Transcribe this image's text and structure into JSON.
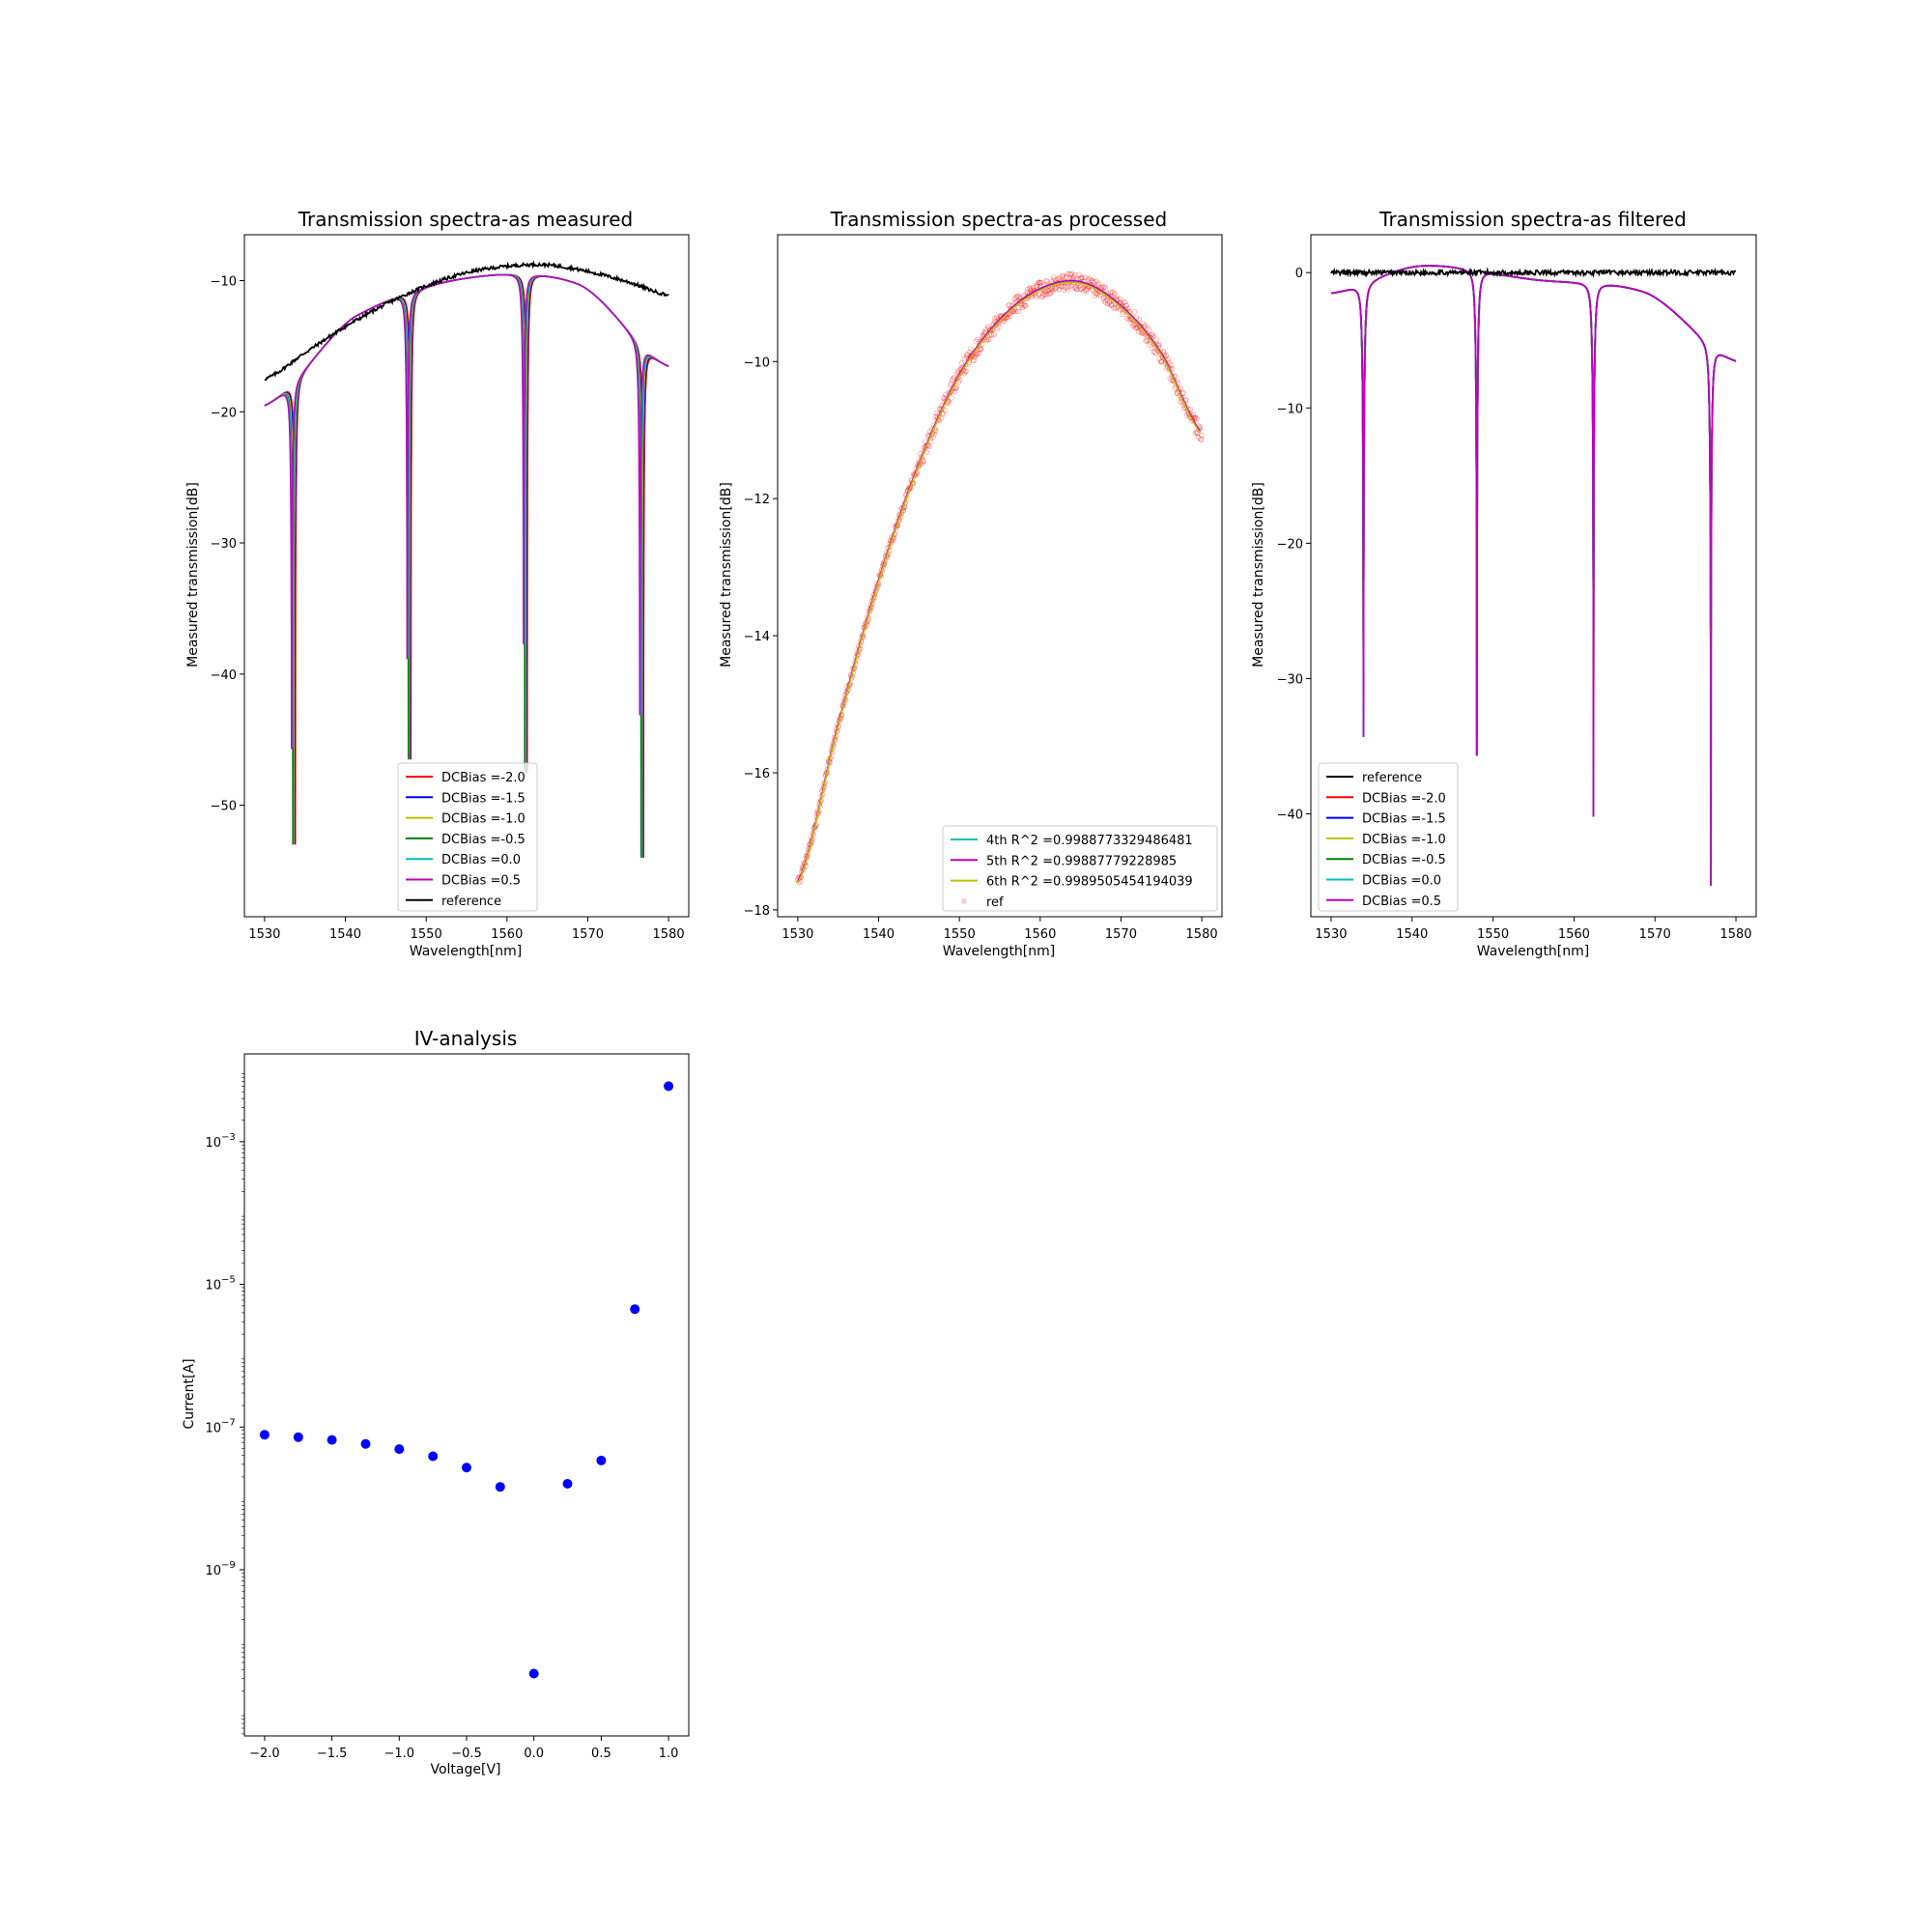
{
  "chart_data": [
    {
      "id": "measured",
      "type": "line",
      "title": "Transmission spectra-as measured",
      "xlabel": "Wavelength[nm]",
      "ylabel": "Measured transmission[dB]",
      "xlim": [
        1527.5,
        1582.5
      ],
      "ylim": [
        -58.5,
        -6.5
      ],
      "xticks": [
        1530,
        1540,
        1550,
        1560,
        1570,
        1580
      ],
      "xtick_labels": [
        "1530",
        "1540",
        "1550",
        "1560",
        "1570",
        "1580"
      ],
      "yticks": [
        -50,
        -40,
        -30,
        -20,
        -10
      ],
      "ytick_labels": [
        "−50",
        "−40",
        "−30",
        "−20",
        "−10"
      ],
      "legend_position": "lower-center",
      "series": [
        {
          "name": "DCBias =-2.0",
          "color": "#ff0000",
          "kind": "ring",
          "shift": 0.3,
          "x": [],
          "y": []
        },
        {
          "name": "DCBias =-1.5",
          "color": "#0000ff",
          "kind": "ring",
          "shift": 0.2,
          "x": [],
          "y": []
        },
        {
          "name": "DCBias =-1.0",
          "color": "#bfbf00",
          "kind": "ring",
          "shift": 0.1,
          "x": [],
          "y": []
        },
        {
          "name": "DCBias =-0.5",
          "color": "#008000",
          "kind": "ring",
          "shift": 0.0,
          "x": [],
          "y": []
        },
        {
          "name": "DCBias =0.0",
          "color": "#00bfbf",
          "kind": "ring",
          "shift": -0.05,
          "x": [],
          "y": []
        },
        {
          "name": "DCBias =0.5",
          "color": "#bf00bf",
          "kind": "ring",
          "shift": -0.15,
          "x": [],
          "y": []
        },
        {
          "name": "reference",
          "color": "#000000",
          "kind": "reference",
          "x": [],
          "y": []
        }
      ],
      "envelope": {
        "x": [
          1530,
          1541,
          1555,
          1569,
          1580
        ],
        "y": [
          -19.5,
          -12.8,
          -9.8,
          -10.3,
          -16.5
        ]
      },
      "reference_curve": {
        "x": [
          1530,
          1535,
          1540,
          1545,
          1550,
          1555,
          1560,
          1565,
          1570,
          1575,
          1580
        ],
        "y": [
          -17.5,
          -15.5,
          -13.5,
          -11.8,
          -10.4,
          -9.4,
          -8.9,
          -8.8,
          -9.3,
          -10.1,
          -11.1
        ]
      },
      "dips": [
        {
          "x": 1533.5,
          "depth": -53.0
        },
        {
          "x": 1547.8,
          "depth": -46.5
        },
        {
          "x": 1562.2,
          "depth": -47.5
        },
        {
          "x": 1576.6,
          "depth": -54.0
        }
      ]
    },
    {
      "id": "processed",
      "type": "line",
      "title": "Transmission spectra-as processed",
      "xlabel": "Wavelength[nm]",
      "ylabel": "Measured transmission[dB]",
      "xlim": [
        1527.5,
        1582.5
      ],
      "ylim": [
        -18.1,
        -8.15
      ],
      "xticks": [
        1530,
        1540,
        1550,
        1560,
        1570,
        1580
      ],
      "xtick_labels": [
        "1530",
        "1540",
        "1550",
        "1560",
        "1570",
        "1580"
      ],
      "yticks": [
        -18,
        -16,
        -14,
        -12,
        -10
      ],
      "ytick_labels": [
        "−18",
        "−16",
        "−14",
        "−12",
        "−10"
      ],
      "legend_position": "lower-right",
      "series": [
        {
          "name": "4th  R^2 =0.9988773329486481",
          "color": "#00bfbf",
          "kind": "fit",
          "x": [],
          "y": []
        },
        {
          "name": "5th  R^2 =0.99887779228985",
          "color": "#bf00bf",
          "kind": "fit",
          "x": [],
          "y": []
        },
        {
          "name": "6th  R^2 =0.9989505454194039",
          "color": "#bfbf00",
          "kind": "fit",
          "x": [],
          "y": []
        },
        {
          "name": "ref",
          "color": "#ff0000",
          "kind": "scatter",
          "x": [],
          "y": []
        }
      ],
      "fit_curve": {
        "x": [
          1530,
          1535,
          1540,
          1545,
          1550,
          1555,
          1560,
          1565,
          1570,
          1575,
          1580
        ],
        "y": [
          -17.6,
          -15.3,
          -13.2,
          -11.5,
          -10.2,
          -9.4,
          -8.95,
          -8.85,
          -9.2,
          -9.9,
          -11.05
        ]
      }
    },
    {
      "id": "filtered",
      "type": "line",
      "title": "Transmission spectra-as filtered",
      "xlabel": "Wavelength[nm]",
      "ylabel": "Measured transmission[dB]",
      "xlim": [
        1527.5,
        1582.5
      ],
      "ylim": [
        -47.6,
        2.8
      ],
      "xticks": [
        1530,
        1540,
        1550,
        1560,
        1570,
        1580
      ],
      "xtick_labels": [
        "1530",
        "1540",
        "1550",
        "1560",
        "1570",
        "1580"
      ],
      "yticks": [
        -40,
        -30,
        -20,
        -10,
        0
      ],
      "ytick_labels": [
        "−40",
        "−30",
        "−20",
        "−10",
        "0"
      ],
      "legend_position": "lower-left",
      "series": [
        {
          "name": "reference",
          "color": "#000000",
          "kind": "flat",
          "x": [],
          "y": []
        },
        {
          "name": "DCBias =-2.0",
          "color": "#ff0000",
          "kind": "ring",
          "x": [],
          "y": []
        },
        {
          "name": "DCBias =-1.5",
          "color": "#0000ff",
          "kind": "ring",
          "x": [],
          "y": []
        },
        {
          "name": "DCBias =-1.0",
          "color": "#bfbf00",
          "kind": "ring",
          "x": [],
          "y": []
        },
        {
          "name": "DCBias =-0.5",
          "color": "#008000",
          "kind": "ring",
          "x": [],
          "y": []
        },
        {
          "name": "DCBias =0.0",
          "color": "#00bfbf",
          "kind": "ring",
          "x": [],
          "y": []
        },
        {
          "name": "DCBias =0.5",
          "color": "#bf00bf",
          "kind": "ring",
          "x": [],
          "y": []
        }
      ],
      "envelope": {
        "x": [
          1530,
          1541,
          1555,
          1569,
          1580
        ],
        "y": [
          -1.5,
          0.5,
          -0.5,
          -1.5,
          -6.5
        ]
      },
      "dips": [
        {
          "x": 1534.0,
          "depth": -34.3
        },
        {
          "x": 1548.0,
          "depth": -35.7
        },
        {
          "x": 1562.4,
          "depth": -40.2
        },
        {
          "x": 1576.9,
          "depth": -45.3
        }
      ]
    },
    {
      "id": "iv",
      "type": "scatter",
      "title": "IV-analysis",
      "xlabel": "Voltage[V]",
      "ylabel": "Current[A]",
      "yscale": "log",
      "xlim": [
        -2.15,
        1.15
      ],
      "ylim": [
        4.68e-12,
        0.017
      ],
      "xticks": [
        -2.0,
        -1.5,
        -1.0,
        -0.5,
        0.0,
        0.5,
        1.0
      ],
      "xtick_labels": [
        "−2.0",
        "−1.5",
        "−1.0",
        "−0.5",
        "0.0",
        "0.5",
        "1.0"
      ],
      "yticks": [
        1e-09,
        1e-07,
        1e-05,
        0.001
      ],
      "ytick_labels": [
        "10",
        "10",
        "10",
        "10"
      ],
      "ytick_exponents": [
        "−9",
        "−7",
        "−5",
        "−3"
      ],
      "color": "#0000ff",
      "x": [
        -2.0,
        -1.75,
        -1.5,
        -1.25,
        -1.0,
        -0.75,
        -0.5,
        -0.25,
        0.0,
        0.25,
        0.5,
        0.75,
        1.0
      ],
      "y": [
        7.8e-08,
        7.2e-08,
        6.6e-08,
        5.8e-08,
        4.9e-08,
        3.9e-08,
        2.7e-08,
        1.45e-08,
        3.5e-11,
        1.6e-08,
        3.4e-08,
        4.5e-06,
        0.006
      ]
    }
  ]
}
